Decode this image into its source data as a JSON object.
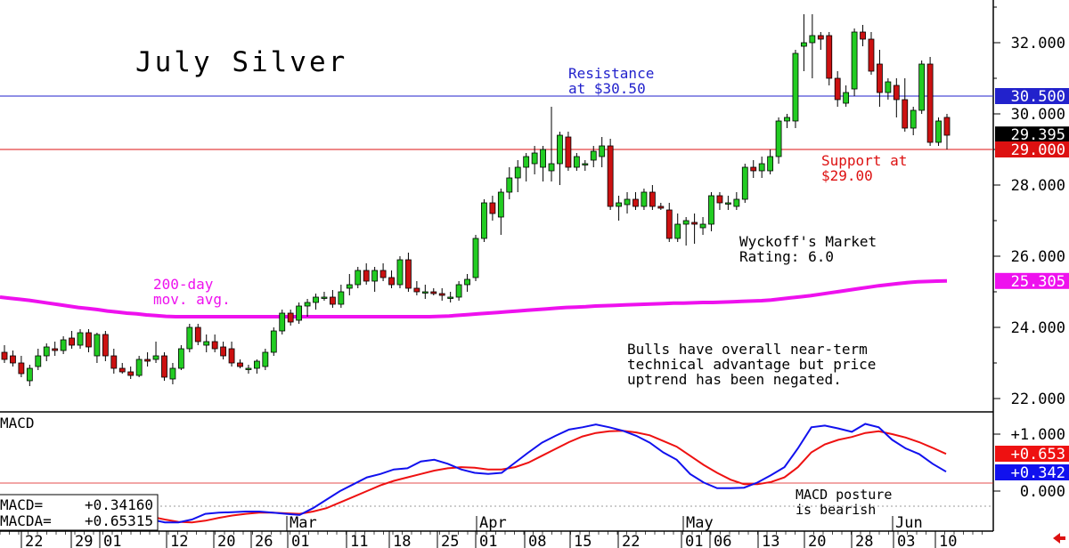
{
  "chart_data": [
    {
      "type": "candlestick",
      "title": "July Silver",
      "ylim": [
        21.5,
        33.0
      ],
      "y_ticks": [
        "32.000",
        "30.000",
        "28.000",
        "26.000",
        "24.000",
        "22.000"
      ],
      "y_tick_values": [
        32,
        30,
        28,
        26,
        24,
        22
      ],
      "x_ticks": [
        "22",
        "29",
        "01",
        "12",
        "20",
        "26",
        "01",
        "11",
        "18",
        "25",
        "01",
        "08",
        "15",
        "22",
        "01",
        "06",
        "13",
        "20",
        "28",
        "03",
        "10"
      ],
      "months": [
        "Mar",
        "Apr",
        "May",
        "Jun"
      ],
      "resistance": {
        "value": 30.5,
        "label_line1": "Resistance",
        "label_line2": "at $30.50",
        "price_tag": "30.500",
        "color": "#2222cc"
      },
      "support": {
        "value": 29.0,
        "label_line1": "Support at",
        "label_line2": "$29.00",
        "price_tag": "29.000",
        "color": "#dd1111"
      },
      "last_price": {
        "value": 29.395,
        "label": "29.395"
      },
      "moving_average": {
        "name_line1": "200-day",
        "name_line2": "mov. avg.",
        "tag": "25.305",
        "color": "#ee11ee",
        "values": [
          24.85,
          24.82,
          24.79,
          24.76,
          24.72,
          24.68,
          24.64,
          24.6,
          24.56,
          24.53,
          24.5,
          24.46,
          24.43,
          24.4,
          24.38,
          24.35,
          24.33,
          24.31,
          24.3,
          24.3,
          24.3,
          24.3,
          24.3,
          24.3,
          24.3,
          24.3,
          24.3,
          24.3,
          24.3,
          24.3,
          24.3,
          24.3,
          24.3,
          24.3,
          24.3,
          24.3,
          24.3,
          24.3,
          24.3,
          24.3,
          24.3,
          24.3,
          24.3,
          24.3,
          24.3,
          24.31,
          24.32,
          24.34,
          24.36,
          24.38,
          24.4,
          24.42,
          24.44,
          24.46,
          24.48,
          24.5,
          24.52,
          24.54,
          24.56,
          24.57,
          24.58,
          24.6,
          24.61,
          24.62,
          24.63,
          24.64,
          24.65,
          24.66,
          24.67,
          24.68,
          24.68,
          24.69,
          24.7,
          24.7,
          24.71,
          24.72,
          24.73,
          24.74,
          24.75,
          24.77,
          24.8,
          24.83,
          24.86,
          24.89,
          24.93,
          24.97,
          25.01,
          25.05,
          25.09,
          25.13,
          25.17,
          25.2,
          25.23,
          25.26,
          25.28,
          25.29,
          25.3,
          25.305
        ]
      },
      "candles": [
        {
          "o": 23.3,
          "h": 23.5,
          "l": 23.0,
          "c": 23.1
        },
        {
          "o": 23.2,
          "h": 23.35,
          "l": 22.9,
          "c": 23.0
        },
        {
          "o": 23.0,
          "h": 23.2,
          "l": 22.6,
          "c": 22.7
        },
        {
          "o": 22.5,
          "h": 22.95,
          "l": 22.35,
          "c": 22.85
        },
        {
          "o": 22.9,
          "h": 23.4,
          "l": 22.8,
          "c": 23.2
        },
        {
          "o": 23.2,
          "h": 23.55,
          "l": 23.05,
          "c": 23.45
        },
        {
          "o": 23.4,
          "h": 23.6,
          "l": 23.2,
          "c": 23.35
        },
        {
          "o": 23.35,
          "h": 23.75,
          "l": 23.25,
          "c": 23.65
        },
        {
          "o": 23.7,
          "h": 23.9,
          "l": 23.4,
          "c": 23.5
        },
        {
          "o": 23.5,
          "h": 23.95,
          "l": 23.4,
          "c": 23.85
        },
        {
          "o": 23.85,
          "h": 23.95,
          "l": 23.3,
          "c": 23.45
        },
        {
          "o": 23.2,
          "h": 23.85,
          "l": 23.0,
          "c": 23.8
        },
        {
          "o": 23.8,
          "h": 23.9,
          "l": 23.05,
          "c": 23.2
        },
        {
          "o": 23.2,
          "h": 23.4,
          "l": 22.7,
          "c": 22.85
        },
        {
          "o": 22.85,
          "h": 23.0,
          "l": 22.7,
          "c": 22.75
        },
        {
          "o": 22.75,
          "h": 22.9,
          "l": 22.55,
          "c": 22.65
        },
        {
          "o": 22.65,
          "h": 23.2,
          "l": 22.6,
          "c": 23.1
        },
        {
          "o": 23.1,
          "h": 23.3,
          "l": 22.9,
          "c": 23.05
        },
        {
          "o": 23.1,
          "h": 23.6,
          "l": 23.0,
          "c": 23.2
        },
        {
          "o": 23.2,
          "h": 23.3,
          "l": 22.5,
          "c": 22.6
        },
        {
          "o": 22.55,
          "h": 23.0,
          "l": 22.4,
          "c": 22.85
        },
        {
          "o": 22.85,
          "h": 23.5,
          "l": 22.8,
          "c": 23.4
        },
        {
          "o": 23.4,
          "h": 24.1,
          "l": 23.3,
          "c": 24.0
        },
        {
          "o": 24.0,
          "h": 24.1,
          "l": 23.5,
          "c": 23.6
        },
        {
          "o": 23.5,
          "h": 23.8,
          "l": 23.3,
          "c": 23.6
        },
        {
          "o": 23.6,
          "h": 23.8,
          "l": 23.3,
          "c": 23.4
        },
        {
          "o": 23.45,
          "h": 23.6,
          "l": 23.1,
          "c": 23.2
        },
        {
          "o": 23.4,
          "h": 23.6,
          "l": 22.9,
          "c": 23.0
        },
        {
          "o": 23.0,
          "h": 23.1,
          "l": 22.85,
          "c": 22.9
        },
        {
          "o": 22.85,
          "h": 22.95,
          "l": 22.7,
          "c": 22.85
        },
        {
          "o": 22.85,
          "h": 23.1,
          "l": 22.7,
          "c": 23.05
        },
        {
          "o": 22.9,
          "h": 23.4,
          "l": 22.8,
          "c": 23.3
        },
        {
          "o": 23.3,
          "h": 24.0,
          "l": 23.2,
          "c": 23.9
        },
        {
          "o": 23.9,
          "h": 24.5,
          "l": 23.8,
          "c": 24.4
        },
        {
          "o": 24.4,
          "h": 24.5,
          "l": 24.05,
          "c": 24.15
        },
        {
          "o": 24.2,
          "h": 24.7,
          "l": 24.1,
          "c": 24.6
        },
        {
          "o": 24.6,
          "h": 24.8,
          "l": 24.3,
          "c": 24.7
        },
        {
          "o": 24.7,
          "h": 24.95,
          "l": 24.5,
          "c": 24.85
        },
        {
          "o": 24.85,
          "h": 25.0,
          "l": 24.75,
          "c": 24.85
        },
        {
          "o": 24.85,
          "h": 25.05,
          "l": 24.55,
          "c": 24.65
        },
        {
          "o": 24.65,
          "h": 25.2,
          "l": 24.55,
          "c": 25.0
        },
        {
          "o": 25.1,
          "h": 25.5,
          "l": 24.9,
          "c": 25.2
        },
        {
          "o": 25.2,
          "h": 25.7,
          "l": 25.1,
          "c": 25.6
        },
        {
          "o": 25.6,
          "h": 25.8,
          "l": 25.2,
          "c": 25.3
        },
        {
          "o": 25.3,
          "h": 25.7,
          "l": 25.0,
          "c": 25.6
        },
        {
          "o": 25.6,
          "h": 25.8,
          "l": 25.3,
          "c": 25.4
        },
        {
          "o": 25.4,
          "h": 25.6,
          "l": 25.1,
          "c": 25.2
        },
        {
          "o": 25.2,
          "h": 26.0,
          "l": 25.1,
          "c": 25.9
        },
        {
          "o": 25.9,
          "h": 26.1,
          "l": 25.0,
          "c": 25.1
        },
        {
          "o": 25.1,
          "h": 25.3,
          "l": 24.9,
          "c": 25.0
        },
        {
          "o": 25.0,
          "h": 25.2,
          "l": 24.8,
          "c": 25.0
        },
        {
          "o": 25.0,
          "h": 25.1,
          "l": 24.9,
          "c": 24.95
        },
        {
          "o": 24.95,
          "h": 25.1,
          "l": 24.75,
          "c": 24.9
        },
        {
          "o": 24.85,
          "h": 25.0,
          "l": 24.7,
          "c": 24.85
        },
        {
          "o": 24.85,
          "h": 25.3,
          "l": 24.75,
          "c": 25.2
        },
        {
          "o": 25.2,
          "h": 25.5,
          "l": 25.0,
          "c": 25.35
        },
        {
          "o": 25.4,
          "h": 26.6,
          "l": 25.3,
          "c": 26.5
        },
        {
          "o": 26.5,
          "h": 27.6,
          "l": 26.4,
          "c": 27.5
        },
        {
          "o": 27.5,
          "h": 27.7,
          "l": 27.0,
          "c": 27.2
        },
        {
          "o": 27.1,
          "h": 27.9,
          "l": 26.6,
          "c": 27.8
        },
        {
          "o": 27.8,
          "h": 28.5,
          "l": 27.6,
          "c": 28.2
        },
        {
          "o": 28.2,
          "h": 28.7,
          "l": 27.8,
          "c": 28.5
        },
        {
          "o": 28.5,
          "h": 28.9,
          "l": 28.1,
          "c": 28.8
        },
        {
          "o": 28.6,
          "h": 29.1,
          "l": 28.3,
          "c": 28.9
        },
        {
          "o": 28.5,
          "h": 29.1,
          "l": 28.1,
          "c": 29.0
        },
        {
          "o": 28.4,
          "h": 30.2,
          "l": 28.1,
          "c": 28.6
        },
        {
          "o": 28.6,
          "h": 29.5,
          "l": 28.0,
          "c": 29.4
        },
        {
          "o": 29.35,
          "h": 29.5,
          "l": 28.4,
          "c": 28.5
        },
        {
          "o": 28.5,
          "h": 28.9,
          "l": 28.4,
          "c": 28.8
        },
        {
          "o": 28.6,
          "h": 28.7,
          "l": 28.4,
          "c": 28.6
        },
        {
          "o": 28.7,
          "h": 29.1,
          "l": 28.5,
          "c": 28.95
        },
        {
          "o": 28.8,
          "h": 29.35,
          "l": 28.5,
          "c": 29.1
        },
        {
          "o": 29.1,
          "h": 29.3,
          "l": 27.3,
          "c": 27.4
        },
        {
          "o": 27.4,
          "h": 27.7,
          "l": 27.0,
          "c": 27.5
        },
        {
          "o": 27.45,
          "h": 27.8,
          "l": 27.2,
          "c": 27.6
        },
        {
          "o": 27.6,
          "h": 27.8,
          "l": 27.3,
          "c": 27.4
        },
        {
          "o": 27.4,
          "h": 27.9,
          "l": 27.3,
          "c": 27.8
        },
        {
          "o": 27.8,
          "h": 28.0,
          "l": 27.3,
          "c": 27.4
        },
        {
          "o": 27.4,
          "h": 27.5,
          "l": 27.3,
          "c": 27.35
        },
        {
          "o": 27.3,
          "h": 27.5,
          "l": 26.4,
          "c": 26.5
        },
        {
          "o": 26.5,
          "h": 27.2,
          "l": 26.4,
          "c": 26.9
        },
        {
          "o": 26.9,
          "h": 27.1,
          "l": 26.3,
          "c": 27.0
        },
        {
          "o": 26.95,
          "h": 27.2,
          "l": 26.35,
          "c": 26.9
        },
        {
          "o": 26.8,
          "h": 27.1,
          "l": 26.6,
          "c": 26.9
        },
        {
          "o": 26.9,
          "h": 27.8,
          "l": 26.7,
          "c": 27.7
        },
        {
          "o": 27.7,
          "h": 27.8,
          "l": 27.3,
          "c": 27.5
        },
        {
          "o": 27.5,
          "h": 27.7,
          "l": 27.3,
          "c": 27.5
        },
        {
          "o": 27.4,
          "h": 27.8,
          "l": 27.3,
          "c": 27.6
        },
        {
          "o": 27.6,
          "h": 28.6,
          "l": 27.5,
          "c": 28.5
        },
        {
          "o": 28.5,
          "h": 28.7,
          "l": 28.2,
          "c": 28.4
        },
        {
          "o": 28.4,
          "h": 28.8,
          "l": 28.2,
          "c": 28.6
        },
        {
          "o": 28.4,
          "h": 29.0,
          "l": 28.3,
          "c": 28.8
        },
        {
          "o": 28.8,
          "h": 29.9,
          "l": 28.6,
          "c": 29.8
        },
        {
          "o": 29.8,
          "h": 30.0,
          "l": 29.6,
          "c": 29.9
        },
        {
          "o": 29.8,
          "h": 31.8,
          "l": 29.6,
          "c": 31.7
        },
        {
          "o": 31.9,
          "h": 32.8,
          "l": 31.2,
          "c": 32.0
        },
        {
          "o": 32.0,
          "h": 32.8,
          "l": 31.0,
          "c": 32.2
        },
        {
          "o": 32.2,
          "h": 32.3,
          "l": 31.8,
          "c": 32.1
        },
        {
          "o": 32.2,
          "h": 32.3,
          "l": 30.8,
          "c": 31.0
        },
        {
          "o": 31.0,
          "h": 31.2,
          "l": 30.2,
          "c": 30.4
        },
        {
          "o": 30.3,
          "h": 30.8,
          "l": 30.2,
          "c": 30.6
        },
        {
          "o": 30.7,
          "h": 32.4,
          "l": 30.5,
          "c": 32.3
        },
        {
          "o": 32.3,
          "h": 32.5,
          "l": 31.9,
          "c": 32.1
        },
        {
          "o": 32.1,
          "h": 32.3,
          "l": 31.1,
          "c": 31.2
        },
        {
          "o": 31.4,
          "h": 31.8,
          "l": 30.2,
          "c": 30.6
        },
        {
          "o": 30.6,
          "h": 31.0,
          "l": 30.4,
          "c": 30.9
        },
        {
          "o": 30.8,
          "h": 31.0,
          "l": 29.9,
          "c": 30.4
        },
        {
          "o": 30.4,
          "h": 31.0,
          "l": 29.5,
          "c": 29.6
        },
        {
          "o": 29.6,
          "h": 30.2,
          "l": 29.4,
          "c": 30.1
        },
        {
          "o": 30.1,
          "h": 31.5,
          "l": 30.0,
          "c": 31.4
        },
        {
          "o": 31.4,
          "h": 31.6,
          "l": 29.1,
          "c": 29.2
        },
        {
          "o": 29.2,
          "h": 29.9,
          "l": 29.1,
          "c": 29.8
        },
        {
          "o": 29.9,
          "h": 30.0,
          "l": 29.0,
          "c": 29.4
        }
      ]
    },
    {
      "type": "line",
      "title": "MACD",
      "ylim": [
        -0.7,
        1.25
      ],
      "y_ticks": [
        "+1.000",
        "0.000"
      ],
      "y_tick_values": [
        1,
        0
      ],
      "series": [
        {
          "name": "MACD",
          "color": "#1111ee",
          "tag": "+0.342",
          "values": [
            -0.5,
            -0.55,
            -0.55,
            -0.5,
            -0.4,
            -0.38,
            -0.37,
            -0.36,
            -0.36,
            -0.38,
            -0.4,
            -0.42,
            -0.3,
            -0.15,
            0.0,
            0.12,
            0.24,
            0.3,
            0.38,
            0.4,
            0.52,
            0.55,
            0.48,
            0.38,
            0.32,
            0.3,
            0.32,
            0.5,
            0.68,
            0.85,
            0.97,
            1.08,
            1.12,
            1.17,
            1.12,
            1.06,
            0.97,
            0.85,
            0.68,
            0.55,
            0.3,
            0.15,
            0.05,
            0.05,
            0.06,
            0.15,
            0.28,
            0.42,
            0.75,
            1.12,
            1.15,
            1.1,
            1.04,
            1.18,
            1.12,
            0.9,
            0.75,
            0.65,
            0.48,
            0.34
          ]
        },
        {
          "name": "MACDA",
          "color": "#ee1111",
          "tag": "+0.653",
          "values": [
            -0.45,
            -0.5,
            -0.54,
            -0.55,
            -0.52,
            -0.47,
            -0.43,
            -0.4,
            -0.38,
            -0.38,
            -0.39,
            -0.4,
            -0.36,
            -0.3,
            -0.2,
            -0.1,
            0.0,
            0.1,
            0.18,
            0.24,
            0.3,
            0.36,
            0.4,
            0.42,
            0.41,
            0.38,
            0.38,
            0.42,
            0.5,
            0.62,
            0.74,
            0.86,
            0.96,
            1.02,
            1.05,
            1.06,
            1.03,
            0.98,
            0.88,
            0.78,
            0.62,
            0.46,
            0.32,
            0.2,
            0.12,
            0.12,
            0.16,
            0.24,
            0.42,
            0.68,
            0.82,
            0.9,
            0.95,
            1.02,
            1.05,
            1.0,
            0.94,
            0.86,
            0.76,
            0.653
          ]
        }
      ],
      "readout": [
        {
          "label": "MACD=",
          "value": "+0.34160"
        },
        {
          "label": "MACDA=",
          "value": "+0.65315"
        }
      ],
      "annotation_line1": "MACD posture",
      "annotation_line2": "is bearish"
    }
  ],
  "annotations": {
    "wyckoff_line1": "Wyckoff's Market",
    "wyckoff_line2": "Rating: 6.0",
    "commentary_line1": "Bulls have overall near-term",
    "commentary_line2": "technical advantage but price",
    "commentary_line3": "uptrend has been negated."
  },
  "colors": {
    "bull": "#22cc22",
    "bear": "#cc1111",
    "axis": "#000000",
    "grid_dot": "#999999"
  }
}
